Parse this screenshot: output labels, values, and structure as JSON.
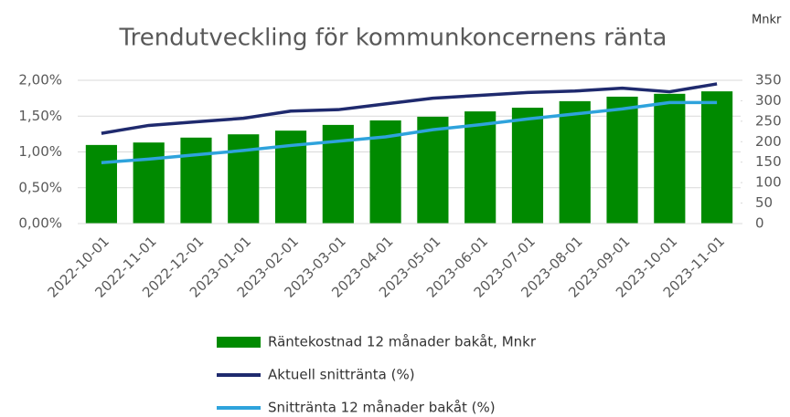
{
  "chart_data": {
    "type": "bar",
    "title": "Trendutveckling för kommunkoncernens ränta",
    "y2_label": "Mnkr",
    "categories": [
      "2022-10-01",
      "2022-11-01",
      "2022-12-01",
      "2023-01-01",
      "2023-02-01",
      "2023-03-01",
      "2023-04-01",
      "2023-05-01",
      "2023-06-01",
      "2023-07-01",
      "2023-08-01",
      "2023-09-01",
      "2023-10-01",
      "2023-11-01"
    ],
    "series": [
      {
        "name": "Räntekostnad 12 månader bakåt, Mnkr",
        "type": "bar",
        "axis": "y2",
        "color": "#008a00",
        "values": [
          192,
          198,
          210,
          218,
          227,
          241,
          252,
          261,
          274,
          283,
          299,
          310,
          317,
          323
        ]
      },
      {
        "name": "Aktuell snittränta (%)",
        "type": "line",
        "color": "#1f2a6e",
        "values": [
          1.26,
          1.37,
          1.42,
          1.47,
          1.57,
          1.59,
          1.67,
          1.75,
          1.79,
          1.83,
          1.85,
          1.89,
          1.84,
          1.95
        ]
      },
      {
        "name": "Snittränta 12 månader bakåt (%)",
        "type": "line",
        "color": "#2ea3dc",
        "values": [
          0.85,
          0.9,
          0.96,
          1.02,
          1.09,
          1.15,
          1.21,
          1.31,
          1.38,
          1.46,
          1.53,
          1.6,
          1.69,
          1.69
        ]
      }
    ],
    "ylim": [
      0,
      2
    ],
    "yticks": [
      {
        "value": 0,
        "label": "0,00%"
      },
      {
        "value": 0.5,
        "label": "0,50%"
      },
      {
        "value": 1,
        "label": "1,00%"
      },
      {
        "value": 1.5,
        "label": "1,50%"
      },
      {
        "value": 2,
        "label": "2,00%"
      }
    ],
    "y2lim": [
      0,
      350
    ],
    "y2ticks": [
      0,
      50,
      100,
      150,
      200,
      250,
      300,
      350
    ],
    "grid": true,
    "legend": "bottom"
  }
}
